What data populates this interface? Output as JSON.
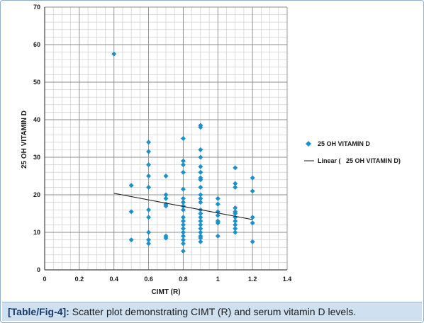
{
  "caption": {
    "label": "[Table/Fig-4]:",
    "text": " Scatter plot demonstrating CIMT (R) and serum vitamin D levels."
  },
  "chart_data": {
    "type": "scatter",
    "xlabel": "CIMT (R)",
    "ylabel": "25 OH VITAMIN D",
    "xlim": [
      0,
      1.4
    ],
    "ylim": [
      0,
      70
    ],
    "xticks": [
      "0",
      "0.2",
      "0.4",
      "0.6",
      "0.8",
      "1",
      "1.2",
      "1.4"
    ],
    "yticks": [
      "0",
      "10",
      "20",
      "30",
      "40",
      "50",
      "60",
      "70"
    ],
    "grid": true,
    "legend_position": "right",
    "series": [
      {
        "name": "25 OH VITAMIN D",
        "color": "#1f8fc9",
        "marker": "diamond",
        "points": [
          [
            0.4,
            57.5
          ],
          [
            0.5,
            22.5
          ],
          [
            0.5,
            15.5
          ],
          [
            0.5,
            8
          ],
          [
            0.6,
            34
          ],
          [
            0.6,
            31.5
          ],
          [
            0.6,
            28
          ],
          [
            0.6,
            25
          ],
          [
            0.6,
            22
          ],
          [
            0.6,
            16
          ],
          [
            0.6,
            14
          ],
          [
            0.6,
            10
          ],
          [
            0.6,
            8
          ],
          [
            0.6,
            7
          ],
          [
            0.7,
            25
          ],
          [
            0.7,
            20
          ],
          [
            0.7,
            19
          ],
          [
            0.7,
            17.5
          ],
          [
            0.7,
            17
          ],
          [
            0.7,
            9
          ],
          [
            0.7,
            8.5
          ],
          [
            0.8,
            35
          ],
          [
            0.8,
            29
          ],
          [
            0.8,
            28
          ],
          [
            0.8,
            26
          ],
          [
            0.8,
            21.5
          ],
          [
            0.8,
            19
          ],
          [
            0.8,
            18
          ],
          [
            0.8,
            17
          ],
          [
            0.8,
            16
          ],
          [
            0.8,
            14
          ],
          [
            0.8,
            13
          ],
          [
            0.8,
            12
          ],
          [
            0.8,
            11
          ],
          [
            0.8,
            10
          ],
          [
            0.8,
            9
          ],
          [
            0.8,
            8
          ],
          [
            0.8,
            7
          ],
          [
            0.8,
            5
          ],
          [
            0.9,
            38.5
          ],
          [
            0.9,
            38
          ],
          [
            0.9,
            32
          ],
          [
            0.9,
            30
          ],
          [
            0.9,
            27.5
          ],
          [
            0.9,
            26
          ],
          [
            0.9,
            24.5
          ],
          [
            0.9,
            24
          ],
          [
            0.9,
            22
          ],
          [
            0.9,
            20
          ],
          [
            0.9,
            19
          ],
          [
            0.9,
            18
          ],
          [
            0.9,
            16
          ],
          [
            0.9,
            15
          ],
          [
            0.9,
            14
          ],
          [
            0.9,
            13
          ],
          [
            0.9,
            12
          ],
          [
            0.9,
            11
          ],
          [
            0.9,
            10
          ],
          [
            0.9,
            9
          ],
          [
            0.9,
            8.5
          ],
          [
            0.9,
            7.5
          ],
          [
            1.0,
            19
          ],
          [
            1.0,
            17.5
          ],
          [
            1.0,
            15.5
          ],
          [
            1.0,
            14.5
          ],
          [
            1.0,
            13
          ],
          [
            1.0,
            12.5
          ],
          [
            1.0,
            9
          ],
          [
            1.1,
            27.2
          ],
          [
            1.1,
            23
          ],
          [
            1.1,
            22
          ],
          [
            1.1,
            16.5
          ],
          [
            1.1,
            15.5
          ],
          [
            1.1,
            15
          ],
          [
            1.1,
            14
          ],
          [
            1.1,
            13
          ],
          [
            1.1,
            12
          ],
          [
            1.1,
            11
          ],
          [
            1.1,
            10
          ],
          [
            1.2,
            24.5
          ],
          [
            1.2,
            21
          ],
          [
            1.2,
            14
          ],
          [
            1.2,
            12.5
          ],
          [
            1.2,
            7.5
          ]
        ]
      },
      {
        "name": "Linear (   25 OH VITAMIN D)",
        "color": "#1a1a1a",
        "kind": "trendline",
        "points": [
          [
            0.4,
            20.4
          ],
          [
            1.2,
            13.4
          ]
        ]
      }
    ]
  }
}
